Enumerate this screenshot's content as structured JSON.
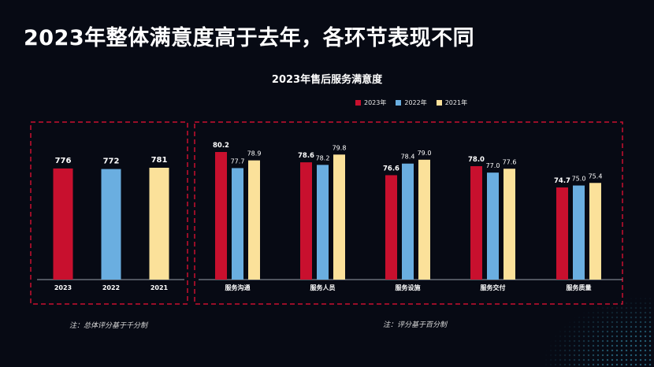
{
  "header": {
    "title": "2023年整体满意度高于去年，各环节表现不同"
  },
  "colors": {
    "s2023": "#c8102e",
    "s2022": "#6aaee0",
    "s2021": "#fbe19a",
    "frame": "#c8102e",
    "background": "#070a14"
  },
  "chart_data": [
    {
      "type": "bar",
      "title": "2023年售后服务满意度",
      "categories": [
        "2023",
        "2022",
        "2021"
      ],
      "values": [
        776,
        772,
        781
      ],
      "value_labels": [
        "776",
        "772",
        "781"
      ],
      "ylim": [
        0,
        1000
      ],
      "note": "注：总体评分基于千分制"
    },
    {
      "type": "bar",
      "categories": [
        "服务沟通",
        "服务人员",
        "服务设施",
        "服务交付",
        "服务质量"
      ],
      "legend": [
        "2023年",
        "2022年",
        "2021年"
      ],
      "series": [
        {
          "name": "2023年",
          "values": [
            80.2,
            78.6,
            76.6,
            78.0,
            74.7
          ],
          "labels": [
            "80.2",
            "78.6",
            "76.6",
            "78.0",
            "74.7"
          ]
        },
        {
          "name": "2022年",
          "values": [
            77.7,
            78.2,
            78.4,
            77.0,
            75.0
          ],
          "labels": [
            "77.7",
            "78.2",
            "78.4",
            "77.0",
            "75.0"
          ]
        },
        {
          "name": "2021年",
          "values": [
            78.9,
            79.8,
            79.0,
            77.6,
            75.4
          ],
          "labels": [
            "78.9",
            "79.8",
            "79.0",
            "77.6",
            "75.4"
          ]
        }
      ],
      "ylim": [
        0,
        100
      ],
      "note": "注：评分基于百分制"
    }
  ]
}
